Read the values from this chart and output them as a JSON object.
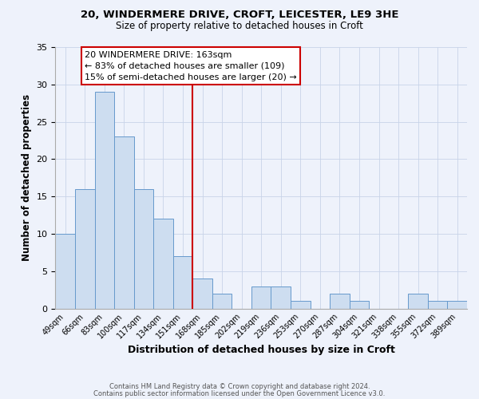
{
  "title_line1": "20, WINDERMERE DRIVE, CROFT, LEICESTER, LE9 3HE",
  "title_line2": "Size of property relative to detached houses in Croft",
  "xlabel": "Distribution of detached houses by size in Croft",
  "ylabel": "Number of detached properties",
  "bar_labels": [
    "49sqm",
    "66sqm",
    "83sqm",
    "100sqm",
    "117sqm",
    "134sqm",
    "151sqm",
    "168sqm",
    "185sqm",
    "202sqm",
    "219sqm",
    "236sqm",
    "253sqm",
    "270sqm",
    "287sqm",
    "304sqm",
    "321sqm",
    "338sqm",
    "355sqm",
    "372sqm",
    "389sqm"
  ],
  "bar_values": [
    10,
    16,
    29,
    23,
    16,
    12,
    7,
    4,
    2,
    0,
    3,
    3,
    1,
    0,
    2,
    1,
    0,
    0,
    2,
    1,
    1
  ],
  "bar_color": "#cdddf0",
  "bar_edge_color": "#6699cc",
  "vline_color": "#cc0000",
  "annotation_title": "20 WINDERMERE DRIVE: 163sqm",
  "annotation_line2": "← 83% of detached houses are smaller (109)",
  "annotation_line3": "15% of semi-detached houses are larger (20) →",
  "annotation_box_edge": "#cc0000",
  "annotation_box_fill": "#ffffff",
  "ylim": [
    0,
    35
  ],
  "yticks": [
    0,
    5,
    10,
    15,
    20,
    25,
    30,
    35
  ],
  "footer_line1": "Contains HM Land Registry data © Crown copyright and database right 2024.",
  "footer_line2": "Contains public sector information licensed under the Open Government Licence v3.0.",
  "background_color": "#eef2fb"
}
